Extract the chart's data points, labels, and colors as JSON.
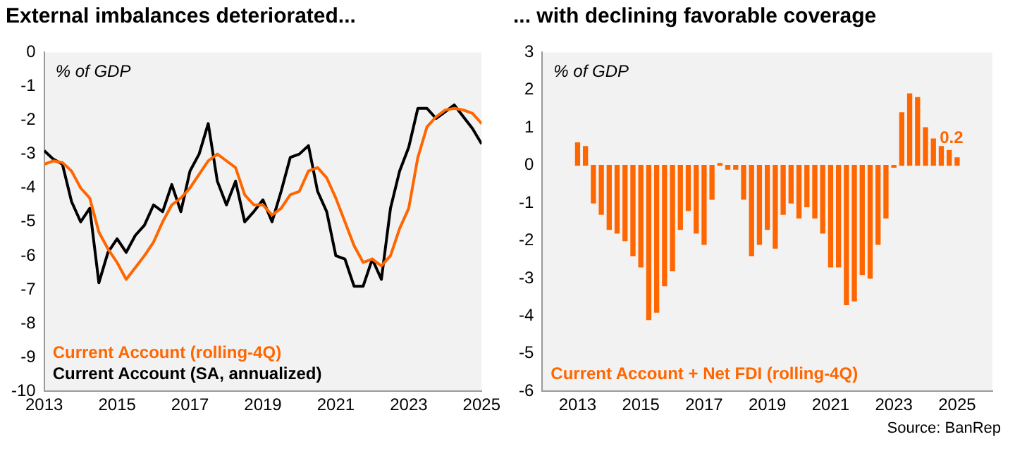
{
  "chart_data": [
    {
      "type": "line",
      "title": "External imbalances deteriorated...",
      "ylabel": "% of GDP",
      "x": [
        2013,
        2013.25,
        2013.5,
        2013.75,
        2014,
        2014.25,
        2014.5,
        2014.75,
        2015,
        2015.25,
        2015.5,
        2015.75,
        2016,
        2016.25,
        2016.5,
        2016.75,
        2017,
        2017.25,
        2017.5,
        2017.75,
        2018,
        2018.25,
        2018.5,
        2018.75,
        2019,
        2019.25,
        2019.5,
        2019.75,
        2020,
        2020.25,
        2020.5,
        2020.75,
        2021,
        2021.25,
        2021.5,
        2021.75,
        2022,
        2022.25,
        2022.5,
        2022.75,
        2023,
        2023.25,
        2023.5,
        2023.75,
        2024,
        2024.25,
        2024.5,
        2024.75,
        2025
      ],
      "series": [
        {
          "name": "Current Account (rolling-4Q)",
          "color": "#ff6600",
          "values": [
            -3.3,
            -3.2,
            -3.25,
            -3.5,
            -4.0,
            -4.3,
            -5.3,
            -5.8,
            -6.2,
            -6.7,
            -6.35,
            -6.0,
            -5.6,
            -5.0,
            -4.5,
            -4.3,
            -4.0,
            -3.6,
            -3.2,
            -3.0,
            -3.2,
            -3.4,
            -4.2,
            -4.5,
            -4.5,
            -4.8,
            -4.6,
            -4.2,
            -4.1,
            -3.5,
            -3.4,
            -3.7,
            -4.3,
            -5.0,
            -5.7,
            -6.2,
            -6.1,
            -6.3,
            -6.0,
            -5.2,
            -4.6,
            -3.1,
            -2.2,
            -1.9,
            -1.7,
            -1.65,
            -1.7,
            -1.8,
            -2.1
          ]
        },
        {
          "name": "Current Account (SA, annualized)",
          "color": "#000000",
          "values": [
            -2.9,
            -3.15,
            -3.3,
            -4.4,
            -5.0,
            -4.6,
            -6.8,
            -5.9,
            -5.5,
            -5.9,
            -5.4,
            -5.1,
            -4.5,
            -4.7,
            -3.9,
            -4.7,
            -3.5,
            -3.0,
            -2.1,
            -3.8,
            -4.5,
            -3.8,
            -5.0,
            -4.7,
            -4.35,
            -5.0,
            -4.1,
            -3.1,
            -3.0,
            -2.75,
            -4.1,
            -4.7,
            -6.0,
            -6.1,
            -6.9,
            -6.9,
            -6.1,
            -6.7,
            -4.6,
            -3.5,
            -2.8,
            -1.65,
            -1.65,
            -1.95,
            -1.75,
            -1.55,
            -1.9,
            -2.25,
            -2.7
          ]
        }
      ],
      "xlim": [
        2013,
        2025
      ],
      "xticks": [
        2013,
        2015,
        2017,
        2019,
        2021,
        2023,
        2025
      ],
      "ylim": [
        -10,
        0
      ],
      "yticks": [
        -10,
        -9,
        -8,
        -7,
        -6,
        -5,
        -4,
        -3,
        -2,
        -1,
        0
      ],
      "grid": false,
      "legend": "bottom left",
      "marker": "none"
    },
    {
      "type": "bar",
      "title": "... with declining favorable coverage",
      "ylabel": "% of GDP",
      "annotations": [
        "Source: BanRep"
      ],
      "x": [
        2013,
        2013.25,
        2013.5,
        2013.75,
        2014,
        2014.25,
        2014.5,
        2014.75,
        2015,
        2015.25,
        2015.5,
        2015.75,
        2016,
        2016.25,
        2016.5,
        2016.75,
        2017,
        2017.25,
        2017.5,
        2017.75,
        2018,
        2018.25,
        2018.5,
        2018.75,
        2019,
        2019.25,
        2019.5,
        2019.75,
        2020,
        2020.25,
        2020.5,
        2020.75,
        2021,
        2021.25,
        2021.5,
        2021.75,
        2022,
        2022.25,
        2022.5,
        2022.75,
        2023,
        2023.25,
        2023.5,
        2023.75,
        2024,
        2024.25,
        2024.5,
        2024.75,
        2025
      ],
      "series": [
        {
          "name": "Current Account + Net FDI (rolling-4Q)",
          "color": "#ff6600",
          "values": [
            0.6,
            0.5,
            -1.0,
            -1.3,
            -1.7,
            -1.8,
            -2.0,
            -2.4,
            -2.7,
            -4.1,
            -3.9,
            -3.2,
            -2.8,
            -1.7,
            -1.2,
            -1.8,
            -2.1,
            -0.9,
            0.05,
            -0.1,
            -0.1,
            -0.9,
            -2.4,
            -2.1,
            -1.7,
            -2.2,
            -1.3,
            -1.0,
            -1.4,
            -1.1,
            -1.4,
            -1.8,
            -2.7,
            -2.7,
            -3.7,
            -3.6,
            -2.9,
            -3.0,
            -2.1,
            -1.4,
            -0.05,
            1.4,
            1.9,
            1.8,
            1.0,
            0.7,
            0.5,
            0.4,
            0.2
          ],
          "value_labels": [
            null,
            null,
            null,
            null,
            null,
            null,
            null,
            null,
            null,
            null,
            null,
            null,
            null,
            null,
            null,
            null,
            null,
            null,
            null,
            null,
            null,
            null,
            null,
            null,
            null,
            null,
            null,
            null,
            null,
            null,
            null,
            null,
            null,
            null,
            null,
            null,
            null,
            null,
            null,
            null,
            null,
            null,
            null,
            null,
            null,
            null,
            null,
            null,
            "0.2"
          ]
        }
      ],
      "xlim": [
        2012.9,
        2025.1
      ],
      "xticks": [
        2013,
        2015,
        2017,
        2019,
        2021,
        2023,
        2025
      ],
      "ylim": [
        -6,
        3
      ],
      "yticks": [
        -6,
        -5,
        -4,
        -3,
        -2,
        -1,
        0,
        1,
        2,
        3
      ],
      "grid": false,
      "legend": "bottom left"
    }
  ]
}
